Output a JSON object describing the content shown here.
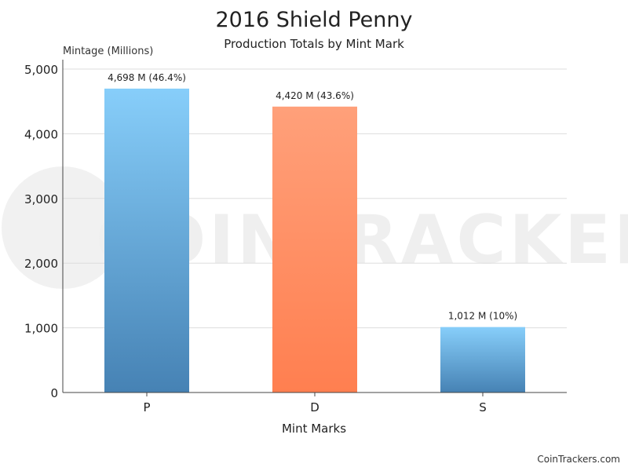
{
  "chart_data": {
    "type": "bar",
    "title": "2016 Shield Penny",
    "subtitle": "Production Totals by Mint Mark",
    "ylabel": "Mintage (Millions)",
    "xlabel": "Mint Marks",
    "categories": [
      "P",
      "D",
      "S"
    ],
    "values": [
      4698,
      4420,
      1012
    ],
    "data_labels": [
      "4,698 M (46.4%)",
      "4,420 M (43.6%)",
      "1,012 M (10%)"
    ],
    "ylim": [
      0,
      5000
    ],
    "yticks": [
      0,
      1000,
      2000,
      3000,
      4000,
      5000
    ],
    "ytick_labels": [
      "0",
      "1,000",
      "2,000",
      "3,000",
      "4,000",
      "5,000"
    ],
    "grid": true,
    "bar_colors": [
      {
        "top": "#87CEFA",
        "bottom": "#4682B4"
      },
      {
        "top": "#FFA07A",
        "bottom": "#FF7F50"
      },
      {
        "top": "#87CEFA",
        "bottom": "#4682B4"
      }
    ]
  },
  "watermark": {
    "text": "COINTRACKERS",
    "color": "#eeeeee"
  },
  "credit": "CoinTrackers.com"
}
